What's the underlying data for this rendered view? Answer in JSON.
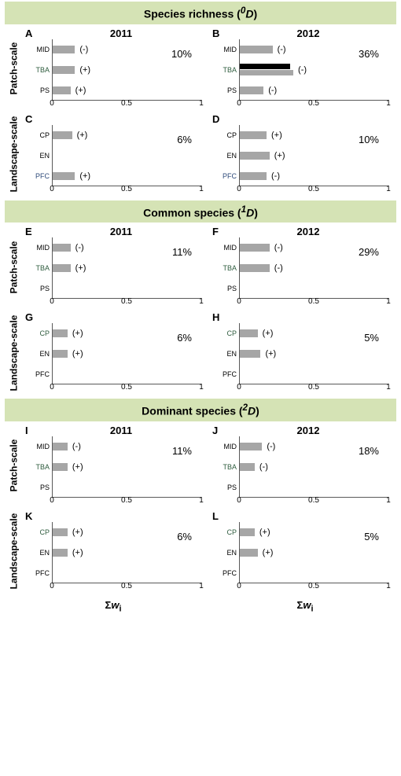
{
  "colors": {
    "header_bg": "#d5e3b5",
    "bar_gray": "#a6a6a6",
    "bar_black": "#000000",
    "axis": "#595959",
    "tba_text": "#2e5c3e",
    "pfc_text": "#2e4a7a"
  },
  "layout": {
    "xlim": [
      0,
      1
    ],
    "xticks": [
      0,
      0.5,
      1
    ],
    "xtick_labels": [
      "0",
      "0.5",
      "1"
    ],
    "bar_row_height": 22,
    "bars_height": 78
  },
  "xlabel_prefix": "Σ",
  "xlabel_var": "w",
  "xlabel_sub": "i",
  "sections": [
    {
      "title_pre": "Species richness (",
      "title_sup": "0",
      "title_ital": "D",
      "title_post": ")",
      "pairs": [
        {
          "ylabel": "Patch-scale",
          "cats": [
            "MID",
            "TBA",
            "PS"
          ],
          "cat_colors": {
            "MID": "#000",
            "TBA": "#2e5c3e",
            "PS": "#000"
          },
          "left": {
            "letter": "A",
            "year": "2011",
            "percent": "10%",
            "bars": [
              {
                "cat": "MID",
                "segs": [
                  {
                    "v": 0.15,
                    "c": "#a6a6a6"
                  }
                ],
                "sign": "(-)"
              },
              {
                "cat": "TBA",
                "segs": [
                  {
                    "v": 0.15,
                    "c": "#a6a6a6"
                  }
                ],
                "sign": "(+)"
              },
              {
                "cat": "PS",
                "segs": [
                  {
                    "v": 0.12,
                    "c": "#a6a6a6"
                  }
                ],
                "sign": "(+)"
              }
            ]
          },
          "right": {
            "letter": "B",
            "year": "2012",
            "percent": "36%",
            "bars": [
              {
                "cat": "MID",
                "segs": [
                  {
                    "v": 0.22,
                    "c": "#a6a6a6"
                  }
                ],
                "sign": "(-)"
              },
              {
                "cat": "TBA",
                "segs": [
                  {
                    "v": 0.34,
                    "c": "#000000"
                  },
                  {
                    "v": 0.36,
                    "c": "#a6a6a6"
                  }
                ],
                "sign": "(-)"
              },
              {
                "cat": "PS",
                "segs": [
                  {
                    "v": 0.16,
                    "c": "#a6a6a6"
                  }
                ],
                "sign": "(-)"
              }
            ]
          }
        },
        {
          "ylabel": "Landscape-scale",
          "cats": [
            "CP",
            "EN",
            "PFC"
          ],
          "cat_colors": {
            "CP": "#000",
            "EN": "#000",
            "PFC": "#2e4a7a"
          },
          "left": {
            "letter": "C",
            "year": "",
            "percent": "6%",
            "bars": [
              {
                "cat": "CP",
                "segs": [
                  {
                    "v": 0.13,
                    "c": "#a6a6a6"
                  }
                ],
                "sign": "(+)"
              },
              {
                "cat": "EN",
                "segs": [],
                "sign": ""
              },
              {
                "cat": "PFC",
                "segs": [
                  {
                    "v": 0.15,
                    "c": "#a6a6a6"
                  }
                ],
                "sign": "(+)"
              }
            ]
          },
          "right": {
            "letter": "D",
            "year": "",
            "percent": "10%",
            "bars": [
              {
                "cat": "CP",
                "segs": [
                  {
                    "v": 0.18,
                    "c": "#a6a6a6"
                  }
                ],
                "sign": "(+)"
              },
              {
                "cat": "EN",
                "segs": [
                  {
                    "v": 0.2,
                    "c": "#a6a6a6"
                  }
                ],
                "sign": "(+)"
              },
              {
                "cat": "PFC",
                "segs": [
                  {
                    "v": 0.18,
                    "c": "#a6a6a6"
                  }
                ],
                "sign": "(-)"
              }
            ]
          }
        }
      ]
    },
    {
      "title_pre": "Common species (",
      "title_sup": "1",
      "title_ital": "D",
      "title_post": ")",
      "pairs": [
        {
          "ylabel": "Patch-scale",
          "cats": [
            "MID",
            "TBA",
            "PS"
          ],
          "cat_colors": {
            "MID": "#000",
            "TBA": "#2e5c3e",
            "PS": "#000"
          },
          "left": {
            "letter": "E",
            "year": "2011",
            "percent": "11%",
            "bars": [
              {
                "cat": "MID",
                "segs": [
                  {
                    "v": 0.12,
                    "c": "#a6a6a6"
                  }
                ],
                "sign": "(-)"
              },
              {
                "cat": "TBA",
                "segs": [
                  {
                    "v": 0.12,
                    "c": "#a6a6a6"
                  }
                ],
                "sign": "(+)"
              },
              {
                "cat": "PS",
                "segs": [],
                "sign": ""
              }
            ]
          },
          "right": {
            "letter": "F",
            "year": "2012",
            "percent": "29%",
            "bars": [
              {
                "cat": "MID",
                "segs": [
                  {
                    "v": 0.2,
                    "c": "#a6a6a6"
                  }
                ],
                "sign": "(-)"
              },
              {
                "cat": "TBA",
                "segs": [
                  {
                    "v": 0.2,
                    "c": "#a6a6a6"
                  }
                ],
                "sign": "(-)"
              },
              {
                "cat": "PS",
                "segs": [],
                "sign": ""
              }
            ]
          }
        },
        {
          "ylabel": "Landscape-scale",
          "cats": [
            "CP",
            "EN",
            "PFC"
          ],
          "cat_colors": {
            "CP": "#2e5c3e",
            "EN": "#000",
            "PFC": "#000"
          },
          "left": {
            "letter": "G",
            "year": "",
            "percent": "6%",
            "bars": [
              {
                "cat": "CP",
                "segs": [
                  {
                    "v": 0.1,
                    "c": "#a6a6a6"
                  }
                ],
                "sign": "(+)"
              },
              {
                "cat": "EN",
                "segs": [
                  {
                    "v": 0.1,
                    "c": "#a6a6a6"
                  }
                ],
                "sign": "(+)"
              },
              {
                "cat": "PFC",
                "segs": [],
                "sign": ""
              }
            ]
          },
          "right": {
            "letter": "H",
            "year": "",
            "percent": "5%",
            "bars": [
              {
                "cat": "CP",
                "segs": [
                  {
                    "v": 0.12,
                    "c": "#a6a6a6"
                  }
                ],
                "sign": "(+)"
              },
              {
                "cat": "EN",
                "segs": [
                  {
                    "v": 0.14,
                    "c": "#a6a6a6"
                  }
                ],
                "sign": "(+)"
              },
              {
                "cat": "PFC",
                "segs": [],
                "sign": ""
              }
            ]
          }
        }
      ]
    },
    {
      "title_pre": "Dominant species (",
      "title_sup": "2",
      "title_ital": "D",
      "title_post": ")",
      "pairs": [
        {
          "ylabel": "Patch-scale",
          "cats": [
            "MID",
            "TBA",
            "PS"
          ],
          "cat_colors": {
            "MID": "#000",
            "TBA": "#2e5c3e",
            "PS": "#000"
          },
          "left": {
            "letter": "I",
            "year": "2011",
            "percent": "11%",
            "bars": [
              {
                "cat": "MID",
                "segs": [
                  {
                    "v": 0.1,
                    "c": "#a6a6a6"
                  }
                ],
                "sign": "(-)"
              },
              {
                "cat": "TBA",
                "segs": [
                  {
                    "v": 0.1,
                    "c": "#a6a6a6"
                  }
                ],
                "sign": "(+)"
              },
              {
                "cat": "PS",
                "segs": [],
                "sign": ""
              }
            ]
          },
          "right": {
            "letter": "J",
            "year": "2012",
            "percent": "18%",
            "bars": [
              {
                "cat": "MID",
                "segs": [
                  {
                    "v": 0.15,
                    "c": "#a6a6a6"
                  }
                ],
                "sign": "(-)"
              },
              {
                "cat": "TBA",
                "segs": [
                  {
                    "v": 0.1,
                    "c": "#a6a6a6"
                  }
                ],
                "sign": "(-)"
              },
              {
                "cat": "PS",
                "segs": [],
                "sign": ""
              }
            ]
          }
        },
        {
          "ylabel": "Landscape-scale",
          "cats": [
            "CP",
            "EN",
            "PFC"
          ],
          "cat_colors": {
            "CP": "#2e5c3e",
            "EN": "#000",
            "PFC": "#000"
          },
          "left": {
            "letter": "K",
            "year": "",
            "percent": "6%",
            "bars": [
              {
                "cat": "CP",
                "segs": [
                  {
                    "v": 0.1,
                    "c": "#a6a6a6"
                  }
                ],
                "sign": "(+)"
              },
              {
                "cat": "EN",
                "segs": [
                  {
                    "v": 0.1,
                    "c": "#a6a6a6"
                  }
                ],
                "sign": "(+)"
              },
              {
                "cat": "PFC",
                "segs": [],
                "sign": ""
              }
            ]
          },
          "right": {
            "letter": "L",
            "year": "",
            "percent": "5%",
            "bars": [
              {
                "cat": "CP",
                "segs": [
                  {
                    "v": 0.1,
                    "c": "#a6a6a6"
                  }
                ],
                "sign": "(+)"
              },
              {
                "cat": "EN",
                "segs": [
                  {
                    "v": 0.12,
                    "c": "#a6a6a6"
                  }
                ],
                "sign": "(+)"
              },
              {
                "cat": "PFC",
                "segs": [],
                "sign": ""
              }
            ]
          }
        }
      ]
    }
  ]
}
